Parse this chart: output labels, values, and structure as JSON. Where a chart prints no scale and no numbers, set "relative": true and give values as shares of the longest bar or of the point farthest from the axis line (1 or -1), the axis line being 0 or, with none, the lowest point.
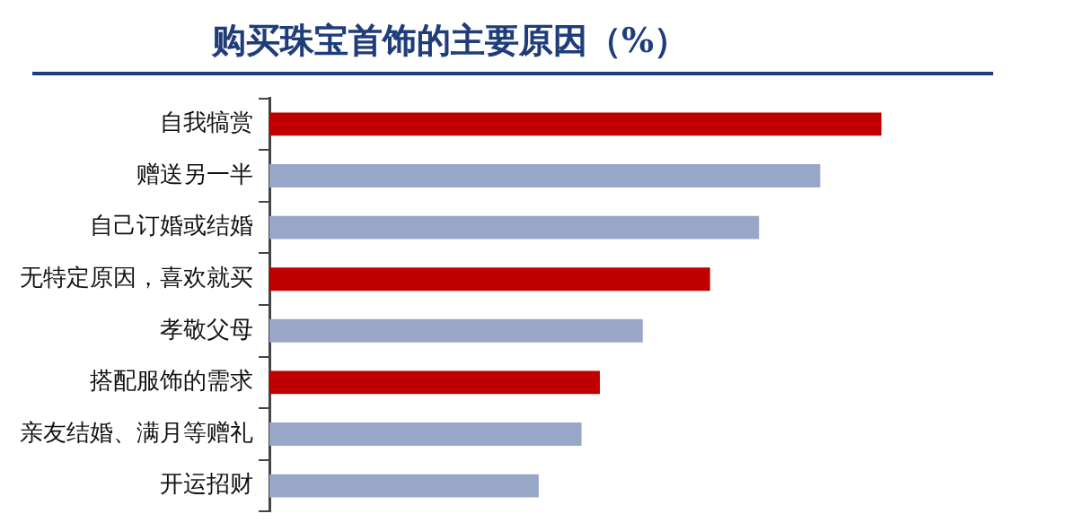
{
  "chart_data": {
    "type": "bar",
    "orientation": "horizontal",
    "relative": true,
    "title": "购买珠宝首饰的主要原因（%）",
    "categories": [
      "自我犒赏",
      "赠送另一半",
      "自己订婚或结婚",
      "无特定原因，喜欢就买",
      "孝敬父母",
      "搭配服饰的需求",
      "亲友结婚、满月等赠礼",
      "开运招财"
    ],
    "values": [
      1,
      0.9,
      0.8,
      0.72,
      0.61,
      0.54,
      0.51,
      0.44
    ],
    "colors": [
      "#c00000",
      "#98a6c8",
      "#98a6c8",
      "#c00000",
      "#98a6c8",
      "#c00000",
      "#98a6c8",
      "#98a6c8"
    ],
    "legend": false
  }
}
